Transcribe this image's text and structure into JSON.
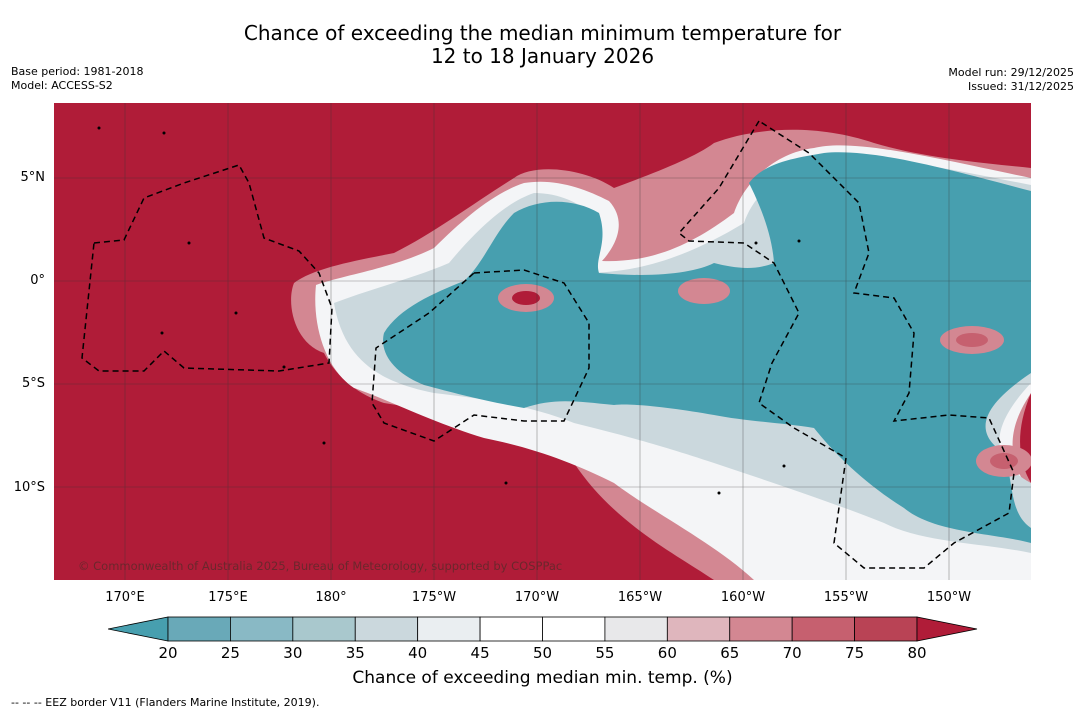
{
  "title": {
    "line1": "Chance of exceeding the median minimum temperature for",
    "line2": "12 to 18 January 2026"
  },
  "meta": {
    "base_period": "Base period: 1981-2018",
    "model": "Model: ACCESS-S2",
    "model_run": "Model run: 29/12/2025",
    "issued": "Issued: 31/12/2025"
  },
  "map": {
    "copyright": "© Commonwealth of Australia 2025, Bureau of Meteorology, supported by COSPPac",
    "lat_labels": [
      "5°N",
      "0°",
      "5°S",
      "10°S"
    ],
    "lon_labels": [
      "170°E",
      "175°E",
      "180°",
      "175°W",
      "170°W",
      "165°W",
      "160°W",
      "155°W",
      "150°W"
    ],
    "colors": {
      "hot": "#b01c38",
      "cold": "#479faf"
    }
  },
  "colorbar": {
    "ticks": [
      "20",
      "25",
      "30",
      "35",
      "40",
      "45",
      "50",
      "55",
      "60",
      "65",
      "70",
      "75",
      "80"
    ],
    "colors": [
      "#479faf",
      "#69a9b8",
      "#89b9c5",
      "#a9c8cd",
      "#cbd8dd",
      "#eaeef1",
      "#ffffff",
      "#ffffff",
      "#e8e8ea",
      "#dfb6bd",
      "#d38792",
      "#c6606f",
      "#b94355",
      "#b01c38"
    ],
    "label": "Chance of exceeding median min. temp. (%)"
  },
  "legend": {
    "eez": "--  --  -- EEZ border V11 (Flanders Marine Institute, 2019)."
  }
}
